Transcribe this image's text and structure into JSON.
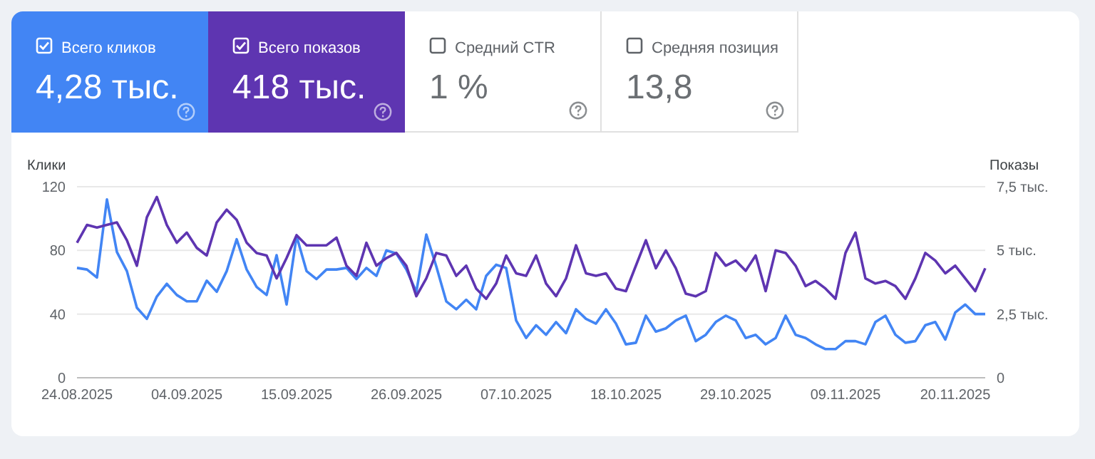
{
  "chart_data": {
    "type": "line",
    "categories": [
      "24.08.2025",
      null,
      null,
      null,
      null,
      null,
      null,
      null,
      null,
      null,
      null,
      "04.09.2025",
      null,
      null,
      null,
      null,
      null,
      null,
      null,
      null,
      null,
      null,
      "15.09.2025",
      null,
      null,
      null,
      null,
      null,
      null,
      null,
      null,
      null,
      null,
      "26.09.2025",
      null,
      null,
      null,
      null,
      null,
      null,
      null,
      null,
      null,
      null,
      "07.10.2025",
      null,
      null,
      null,
      null,
      null,
      null,
      null,
      null,
      null,
      null,
      "18.10.2025",
      null,
      null,
      null,
      null,
      null,
      null,
      null,
      null,
      null,
      null,
      "29.10.2025",
      null,
      null,
      null,
      null,
      null,
      null,
      null,
      null,
      null,
      null,
      "09.11.2025",
      null,
      null,
      null,
      null,
      null,
      null,
      null,
      null,
      null,
      null,
      "20.11.2025",
      null,
      null,
      null
    ],
    "series": [
      {
        "color": "#4285f4",
        "values": [
          69,
          68,
          63,
          112,
          79,
          67,
          44,
          37,
          51,
          59,
          52,
          48,
          48,
          61,
          54,
          67,
          87,
          68,
          57,
          52,
          77,
          46,
          89,
          67,
          62,
          68,
          68,
          69,
          62,
          69,
          64,
          80,
          78,
          68,
          54,
          90,
          70,
          48,
          43,
          49,
          43,
          64,
          71,
          69,
          36,
          25,
          33,
          27,
          35,
          28,
          43,
          37,
          34,
          43,
          34,
          21,
          22,
          39,
          29,
          31,
          36,
          39,
          23,
          27,
          35,
          39,
          36,
          25,
          27,
          21,
          25,
          39,
          27,
          25,
          21,
          18,
          18,
          23,
          23,
          21,
          35,
          39,
          27,
          22,
          23,
          33,
          35,
          24,
          41,
          46,
          40,
          40
        ]
      },
      {
        "color": "#5e35b1",
        "axis": "y2",
        "values": [
          5.3,
          6.0,
          5.9,
          6.0,
          6.1,
          5.4,
          4.4,
          6.3,
          7.1,
          6.0,
          5.3,
          5.7,
          5.1,
          4.8,
          6.1,
          6.6,
          6.2,
          5.3,
          4.9,
          4.8,
          3.9,
          4.7,
          5.6,
          5.2,
          5.2,
          5.2,
          5.5,
          4.4,
          4.0,
          5.3,
          4.4,
          4.7,
          4.9,
          4.4,
          3.2,
          3.9,
          4.9,
          4.8,
          4.0,
          4.4,
          3.5,
          3.1,
          3.7,
          4.8,
          4.1,
          4.0,
          4.8,
          3.7,
          3.2,
          3.9,
          5.2,
          4.1,
          4.0,
          4.1,
          3.5,
          3.4,
          4.4,
          5.4,
          4.3,
          5.0,
          4.3,
          3.3,
          3.2,
          3.4,
          4.9,
          4.4,
          4.6,
          4.2,
          4.8,
          3.4,
          5.0,
          4.9,
          4.4,
          3.6,
          3.8,
          3.5,
          3.1,
          4.9,
          5.7,
          3.9,
          3.7,
          3.8,
          3.6,
          3.1,
          3.9,
          4.9,
          4.6,
          4.1,
          4.4,
          3.9,
          3.4,
          4.3
        ]
      }
    ],
    "ylabel": "Клики",
    "y2label": "Показы",
    "ylim": [
      0,
      120
    ],
    "yticks": [
      0,
      40,
      80,
      120
    ],
    "y2lim": [
      0,
      7.5
    ],
    "y2ticks": [
      0,
      {
        "value": 2.5,
        "label": "2,5 тыс."
      },
      {
        "value": 5,
        "label": "5 тыс."
      },
      {
        "value": 7.5,
        "label": "7,5 тыс."
      }
    ],
    "grid": "y",
    "marker": "none",
    "line_style": "solid",
    "annotations": [
      "Всего кликов",
      "4,28 тыс.",
      "Всего показов",
      "418 тыс.",
      "Средний CTR",
      "1 %",
      "Средняя позиция",
      "13,8"
    ]
  }
}
